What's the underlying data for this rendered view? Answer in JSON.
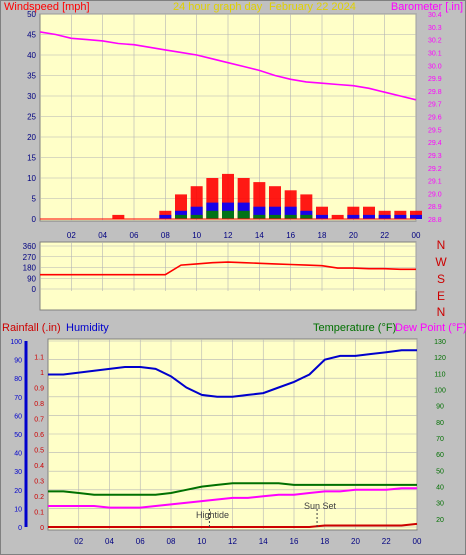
{
  "header": {
    "left_label": "Windspeed [mph]",
    "center_title": "24 hour graph day",
    "date": "February 22 2024",
    "right_label": "Barometer [.in]"
  },
  "lower_header": {
    "rain_label": "Rainfall (.in)",
    "humidity_label": "Humidity",
    "temp_label": "Temperature (°F)",
    "dew_label": "Dew Point (°F)"
  },
  "annotations": {
    "hightide": "Hightide",
    "sunset": "Sun Set"
  },
  "colors": {
    "plot_bg": "#ffffc8",
    "frame_bg": "#c0c0c0",
    "wind": "#ff0000",
    "wind_avg": "#0000ff",
    "wind_low": "#008000",
    "barometer": "#ff00ff",
    "direction": "#ff0000",
    "humidity": "#0000cc",
    "temperature": "#007000",
    "dewpoint": "#ff00ff",
    "rain": "#cc0000",
    "grid": "#b4b4b4"
  },
  "chart_data": [
    {
      "type": "line",
      "title": "24 hour graph day",
      "x": [
        0,
        1,
        2,
        3,
        4,
        5,
        6,
        7,
        8,
        9,
        10,
        11,
        12,
        13,
        14,
        15,
        16,
        17,
        18,
        19,
        20,
        21,
        22,
        23,
        24
      ],
      "x_tick_labels": [
        "02",
        "04",
        "06",
        "08",
        "10",
        "12",
        "14",
        "16",
        "18",
        "20",
        "22",
        "00"
      ],
      "left_axis": {
        "label": "Windspeed [mph]",
        "ylim": [
          0,
          50
        ],
        "ticks": [
          0,
          5,
          10,
          15,
          20,
          25,
          30,
          35,
          40,
          45,
          50
        ]
      },
      "right_axis": {
        "label": "Barometer [.in]",
        "ylim": [
          28.8,
          30.4
        ],
        "ticks": [
          28.8,
          28.9,
          29.0,
          29.1,
          29.2,
          29.3,
          29.4,
          29.5,
          29.6,
          29.7,
          29.8,
          29.9,
          30.0,
          30.1,
          30.2,
          30.3,
          30.4
        ]
      },
      "series": [
        {
          "name": "Barometer [.in]",
          "axis": "right",
          "values": [
            30.26,
            30.24,
            30.21,
            30.2,
            30.19,
            30.17,
            30.16,
            30.14,
            30.12,
            30.1,
            30.08,
            30.05,
            30.02,
            29.99,
            29.96,
            29.92,
            29.89,
            29.87,
            29.86,
            29.85,
            29.84,
            29.82,
            29.79,
            29.76,
            29.73
          ]
        },
        {
          "name": "Windspeed [mph]",
          "axis": "left",
          "values": [
            0,
            0,
            0,
            0,
            0,
            1,
            0,
            0,
            2,
            6,
            8,
            10,
            11,
            10,
            9,
            8,
            7,
            6,
            3,
            1,
            3,
            3,
            2,
            2,
            2
          ]
        },
        {
          "name": "",
          "axis": "left",
          "values": [
            0,
            0,
            0,
            0,
            0,
            0,
            0,
            0,
            1,
            2,
            3,
            4,
            4,
            4,
            3,
            3,
            3,
            2,
            1,
            0,
            1,
            1,
            1,
            1,
            1
          ]
        },
        {
          "name": "",
          "axis": "left",
          "values": [
            0,
            0,
            0,
            0,
            0,
            0,
            0,
            0,
            0,
            1,
            1,
            2,
            2,
            2,
            1,
            1,
            1,
            1,
            0,
            0,
            0,
            0,
            0,
            0,
            0
          ]
        }
      ]
    },
    {
      "type": "line",
      "title": "",
      "x": [
        0,
        1,
        2,
        3,
        4,
        5,
        6,
        7,
        8,
        9,
        10,
        11,
        12,
        13,
        14,
        15,
        16,
        17,
        18,
        19,
        20,
        21,
        22,
        23,
        24
      ],
      "left_axis": {
        "label": "",
        "ylim": [
          0,
          360
        ],
        "ticks": [
          0,
          90,
          180,
          270,
          360
        ]
      },
      "right_labels": [
        "N",
        "W",
        "S",
        "E",
        "N"
      ],
      "series": [
        {
          "name": "",
          "values": [
            120,
            120,
            120,
            120,
            120,
            120,
            120,
            120,
            120,
            200,
            210,
            220,
            225,
            220,
            215,
            210,
            205,
            200,
            195,
            175,
            175,
            170,
            170,
            165,
            165
          ]
        }
      ]
    },
    {
      "type": "line",
      "title": "",
      "x": [
        0,
        1,
        2,
        3,
        4,
        5,
        6,
        7,
        8,
        9,
        10,
        11,
        12,
        13,
        14,
        15,
        16,
        17,
        18,
        19,
        20,
        21,
        22,
        23,
        24
      ],
      "left_axis": {
        "label": "Rainfall (.in)",
        "ylim": [
          0,
          1.2
        ],
        "ticks": [
          0,
          0.1,
          0.2,
          0.3,
          0.4,
          0.5,
          0.6,
          0.7,
          0.8,
          0.9,
          1.0,
          1.1
        ]
      },
      "humidity_axis": {
        "label": "Humidity",
        "ylim": [
          0,
          100
        ],
        "ticks": [
          0,
          10,
          20,
          30,
          40,
          50,
          60,
          70,
          80,
          90,
          100
        ]
      },
      "right_axis": {
        "label": "Temperature (°F)",
        "ylim": [
          15,
          130
        ],
        "ticks": [
          20,
          30,
          40,
          50,
          60,
          70,
          80,
          90,
          100,
          110,
          120,
          130
        ]
      },
      "series": [
        {
          "name": "Humidity",
          "axis": "humidity",
          "values": [
            82,
            82,
            83,
            84,
            85,
            86,
            86,
            85,
            81,
            75,
            71,
            70,
            70,
            71,
            72,
            75,
            78,
            82,
            90,
            92,
            92,
            93,
            94,
            95,
            95
          ]
        },
        {
          "name": "Temperature (°F)",
          "axis": "right",
          "values": [
            37,
            37,
            36,
            35,
            35,
            35,
            35,
            35,
            36,
            38,
            40,
            41,
            42,
            42,
            42,
            42,
            41,
            41,
            41,
            41,
            41,
            41,
            41,
            41,
            41
          ]
        },
        {
          "name": "Dew Point (°F)",
          "axis": "right",
          "values": [
            28,
            28,
            28,
            28,
            27,
            27,
            27,
            28,
            29,
            30,
            31,
            32,
            33,
            33,
            34,
            35,
            35,
            36,
            37,
            37,
            38,
            38,
            38,
            39,
            39
          ]
        },
        {
          "name": "Rainfall (.in)",
          "axis": "left",
          "values": [
            0,
            0,
            0,
            0,
            0,
            0,
            0,
            0,
            0,
            0,
            0,
            0,
            0,
            0,
            0,
            0,
            0,
            0,
            0.01,
            0.01,
            0.01,
            0.01,
            0.01,
            0.01,
            0.02
          ]
        }
      ],
      "markers": [
        {
          "label": "Hightide",
          "x": 10.5
        },
        {
          "label": "Sun Set",
          "x": 17.5
        }
      ]
    }
  ]
}
